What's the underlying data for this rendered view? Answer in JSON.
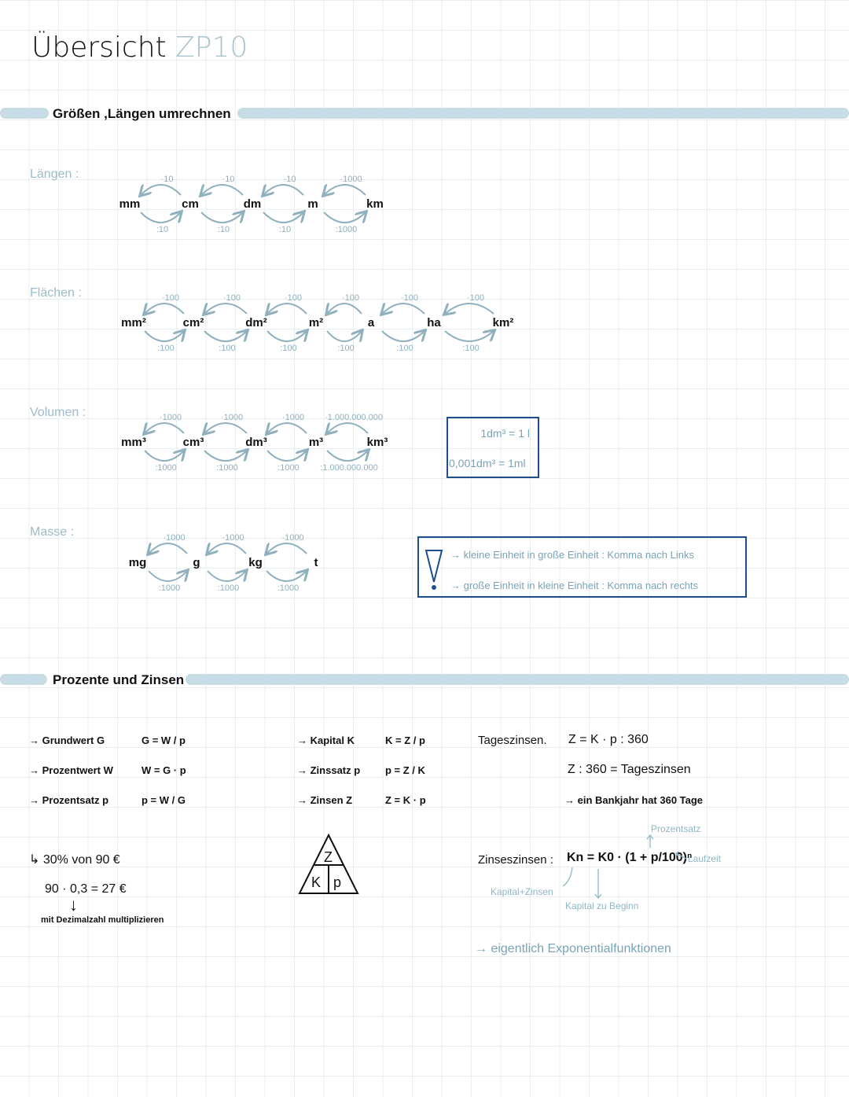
{
  "title": {
    "main": "Übersicht",
    "accent": "ZP10"
  },
  "section1": {
    "heading": "Größen ,Längen umrechnen"
  },
  "chains": [
    {
      "label": "Längen :",
      "units": [
        "mm",
        "cm",
        "dm",
        "m",
        "km"
      ],
      "up": [
        "·10",
        "·10",
        "·10",
        "·1000"
      ],
      "down": [
        ":10",
        ":10",
        ":10",
        ":1000"
      ]
    },
    {
      "label": "Flächen :",
      "units": [
        "mm²",
        "cm²",
        "dm²",
        "m²",
        "a",
        "ha",
        "km²"
      ],
      "up": [
        "·100",
        "·100",
        "·100",
        "·100",
        "·100",
        "·100"
      ],
      "down": [
        ":100",
        ":100",
        ":100",
        ":100",
        ":100",
        ":100"
      ]
    },
    {
      "label": "Volumen :",
      "units": [
        "mm³",
        "cm³",
        "dm³",
        "m³",
        "km³"
      ],
      "up": [
        "·1000",
        "·1000",
        "·1000",
        "·1.000.000.000"
      ],
      "down": [
        ":1000",
        ":1000",
        ":1000",
        ":1.000.000.000"
      ]
    },
    {
      "label": "Masse :",
      "units": [
        "mg",
        "g",
        "kg",
        "t"
      ],
      "up": [
        "·1000",
        "·1000",
        "·1000"
      ],
      "down": [
        ":1000",
        ":1000",
        ":1000"
      ]
    }
  ],
  "volume_box": {
    "line1": "1dm³ = 1 l",
    "line2": "0,001dm³ = 1ml"
  },
  "note_box": {
    "line1": "→ kleine Einheit in große Einheit : Komma nach Links",
    "line2": "→ große Einheit in kleine Einheit : Komma nach rechts"
  },
  "section2": {
    "heading": "Prozente und Zinsen"
  },
  "percent": [
    {
      "term": "→ Grundwert G",
      "formula": "G = W / p"
    },
    {
      "term": "→ Prozentwert W",
      "formula": "W = G · p"
    },
    {
      "term": "→ Prozentsatz p",
      "formula": "p = W / G"
    }
  ],
  "interest": [
    {
      "term": "→ Kapital K",
      "formula": "K = Z / p"
    },
    {
      "term": "→ Zinssatz p",
      "formula": "p = Z / K"
    },
    {
      "term": "→ Zinsen Z",
      "formula": "Z = K · p"
    }
  ],
  "example": {
    "line1": "↳ 30% von 90 €",
    "line2": "90 · 0,3 = 27 €",
    "arrow": "↓",
    "note": "mit Dezimalzahl multiplizieren"
  },
  "triangle": {
    "top": "Z",
    "left": "K",
    "right": "p"
  },
  "daily": {
    "label": "Tageszinsen.",
    "formula": "Z = K · p : 360",
    "line2": "Z : 360 = Tageszinsen",
    "line3": "→ ein Bankjahr hat 360 Tage"
  },
  "compound": {
    "label": "Zinseszinsen :",
    "formula": "Kn = K0 · (1 + p/100)ⁿ",
    "ann_rate": "Prozentsatz",
    "ann_time": "Laufzeit",
    "ann_kn": "Kapital+Zinsen",
    "ann_k0": "Kapital zu Beginn"
  },
  "footer_note": "→ eigentlich Exponentialfunktionen"
}
